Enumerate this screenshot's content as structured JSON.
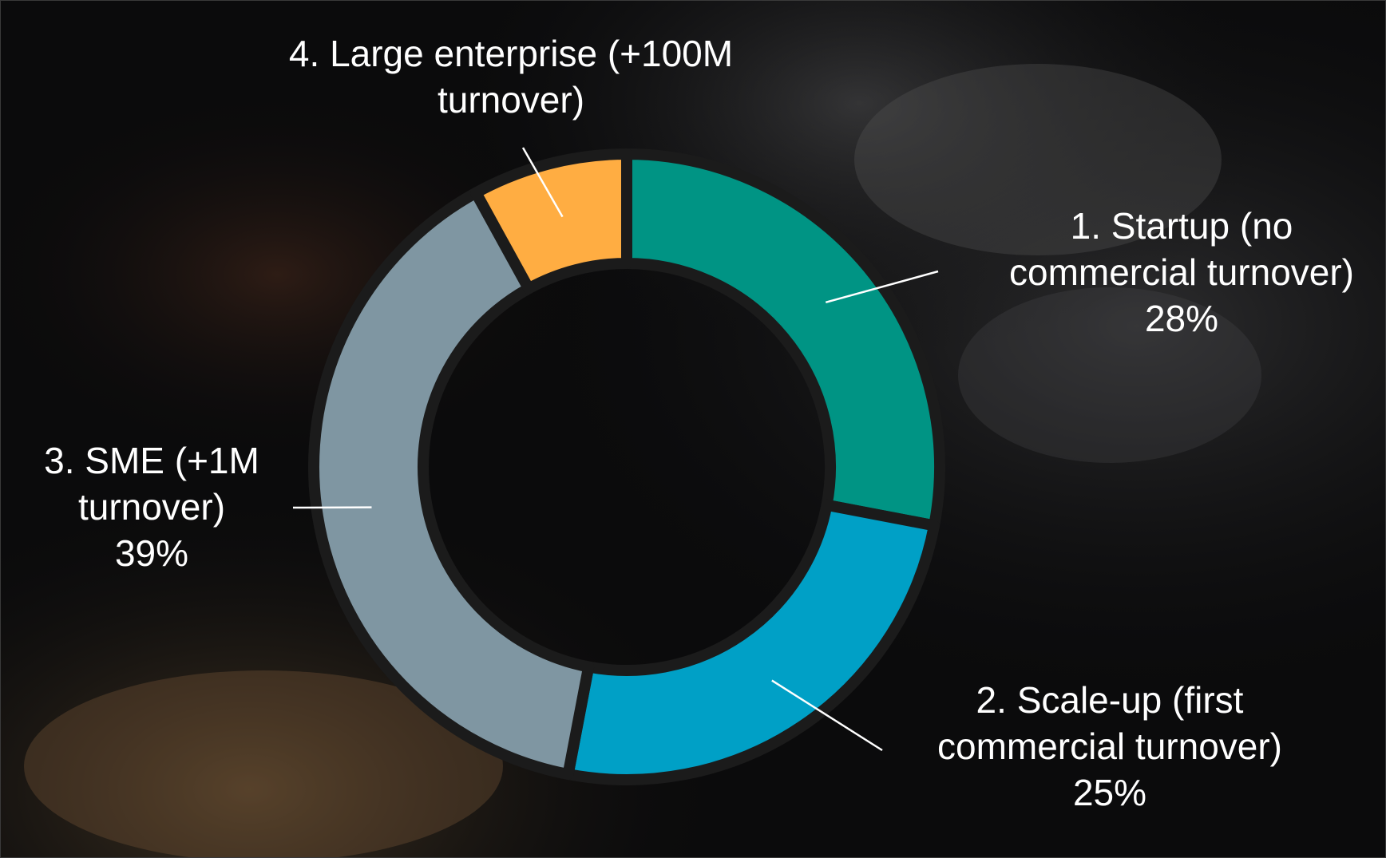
{
  "chart_data": {
    "type": "pie",
    "variant": "donut",
    "title": "",
    "slices": [
      {
        "label_lines": [
          "1. Startup (no",
          "commercial  turnover)"
        ],
        "value_label": "28%",
        "value": 28,
        "color": "#009484"
      },
      {
        "label_lines": [
          "2. Scale-up (first",
          "commercial turnover)"
        ],
        "value_label": "25%",
        "value": 25,
        "color": "#00a0c6"
      },
      {
        "label_lines": [
          "3. SME (+1M",
          "turnover)"
        ],
        "value_label": "39%",
        "value": 39,
        "color": "#7f96a2"
      },
      {
        "label_lines": [
          "4. Large enterprise  (+100M",
          "turnover)"
        ],
        "value_label": "",
        "value": 8,
        "color": "#ffad42"
      }
    ],
    "legend": "none",
    "background": "dark photo of robotic arm and 3D printer"
  }
}
